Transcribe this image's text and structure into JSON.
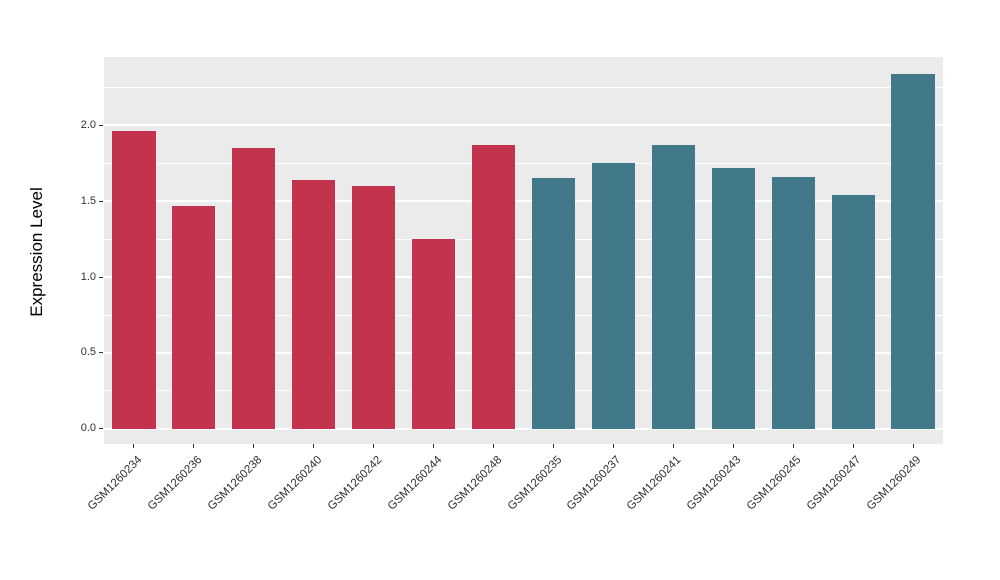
{
  "chart_data": {
    "type": "bar",
    "title": "",
    "xlabel": "",
    "ylabel": "Expression Level",
    "categories": [
      "GSM1260234",
      "GSM1260236",
      "GSM1260238",
      "GSM1260240",
      "GSM1260242",
      "GSM1260244",
      "GSM1260248",
      "GSM1260235",
      "GSM1260237",
      "GSM1260241",
      "GSM1260243",
      "GSM1260245",
      "GSM1260247",
      "GSM1260249"
    ],
    "values": [
      1.96,
      1.47,
      1.85,
      1.64,
      1.6,
      1.25,
      1.87,
      1.65,
      1.75,
      1.87,
      1.72,
      1.66,
      1.54,
      2.34
    ],
    "groups": [
      "group1",
      "group1",
      "group1",
      "group1",
      "group1",
      "group1",
      "group1",
      "group2",
      "group2",
      "group2",
      "group2",
      "group2",
      "group2",
      "group2"
    ],
    "group_colors": {
      "group1": "#C3334D",
      "group2": "#41798B"
    },
    "ylim": [
      -0.1,
      2.45
    ],
    "yticks": [
      0.0,
      0.5,
      1.0,
      1.5,
      2.0
    ],
    "ytick_labels": [
      "0.0",
      "0.5",
      "1.0",
      "1.5",
      "2.0"
    ],
    "minor_gridlines": [
      0.25,
      0.75,
      1.25,
      1.75,
      2.25
    ],
    "grid": true,
    "legend": "none",
    "panel_background": "#EBEBEB",
    "gridline_color": "#FFFFFF",
    "bar_width_fraction": 0.72
  }
}
